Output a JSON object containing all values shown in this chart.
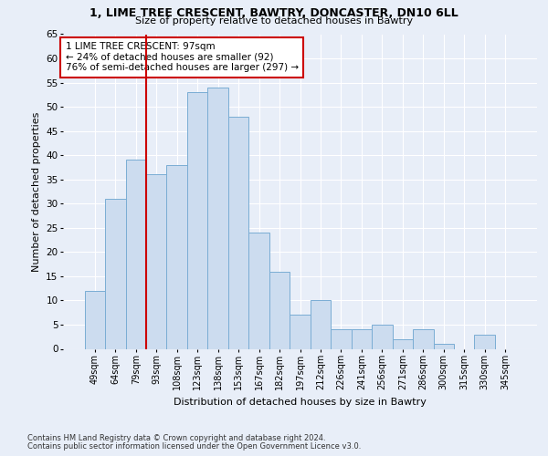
{
  "title1": "1, LIME TREE CRESCENT, BAWTRY, DONCASTER, DN10 6LL",
  "title2": "Size of property relative to detached houses in Bawtry",
  "xlabel": "Distribution of detached houses by size in Bawtry",
  "ylabel": "Number of detached properties",
  "categories": [
    "49sqm",
    "64sqm",
    "79sqm",
    "93sqm",
    "108sqm",
    "123sqm",
    "138sqm",
    "153sqm",
    "167sqm",
    "182sqm",
    "197sqm",
    "212sqm",
    "226sqm",
    "241sqm",
    "256sqm",
    "271sqm",
    "286sqm",
    "300sqm",
    "315sqm",
    "330sqm",
    "345sqm"
  ],
  "values": [
    12,
    31,
    39,
    36,
    38,
    53,
    54,
    48,
    24,
    16,
    7,
    10,
    4,
    4,
    5,
    2,
    4,
    1,
    0,
    3,
    0
  ],
  "bar_color": "#ccdcef",
  "bar_edge_color": "#7aadd4",
  "vline_position": 3,
  "vline_color": "#cc0000",
  "annotation_text": "1 LIME TREE CRESCENT: 97sqm\n← 24% of detached houses are smaller (92)\n76% of semi-detached houses are larger (297) →",
  "annotation_box_color": "#ffffff",
  "annotation_box_edge": "#cc0000",
  "ylim": [
    0,
    65
  ],
  "yticks": [
    0,
    5,
    10,
    15,
    20,
    25,
    30,
    35,
    40,
    45,
    50,
    55,
    60,
    65
  ],
  "footer1": "Contains HM Land Registry data © Crown copyright and database right 2024.",
  "footer2": "Contains public sector information licensed under the Open Government Licence v3.0.",
  "bg_color": "#e8eef8",
  "grid_color": "#ffffff"
}
